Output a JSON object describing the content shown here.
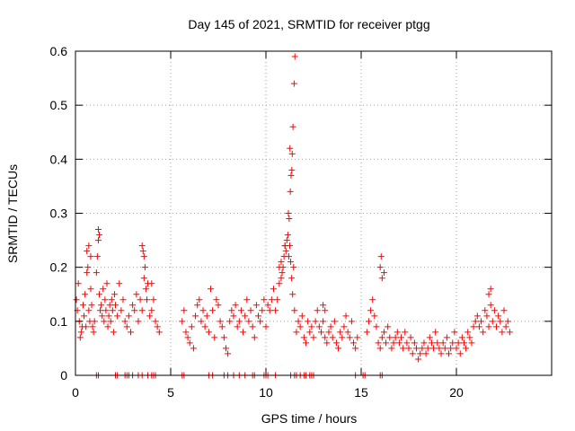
{
  "chart_data": {
    "type": "scatter",
    "title": "Day 145 of 2021, SRMTID for receiver ptgg",
    "xlabel": "GPS time / hours",
    "ylabel": "SRMTID / TECUs",
    "xlim": [
      0,
      25
    ],
    "ylim": [
      0,
      0.6
    ],
    "x_ticks": [
      0,
      5,
      10,
      15,
      20
    ],
    "x_tick_labels": [
      "0",
      "5",
      "10",
      "15",
      "20"
    ],
    "y_ticks": [
      0,
      0.1,
      0.2,
      0.3,
      0.4,
      0.5,
      0.6
    ],
    "y_tick_labels": [
      "0",
      "0.1",
      "0.2",
      "0.3",
      "0.4",
      "0.5",
      "0.6"
    ],
    "grid": true,
    "marker": "+",
    "series": [
      {
        "name": "SRMTID",
        "color": "#ff0000",
        "x": [
          0.05,
          0.1,
          0.15,
          0.2,
          0.25,
          0.3,
          0.35,
          0.4,
          0.45,
          0.5,
          0.55,
          0.6,
          0.65,
          0.7,
          0.75,
          0.8,
          0.85,
          0.9,
          0.95,
          1.0,
          1.1,
          1.15,
          1.2,
          1.25,
          1.3,
          1.35,
          1.4,
          1.45,
          1.5,
          1.55,
          1.6,
          1.65,
          1.7,
          1.75,
          1.8,
          1.85,
          1.9,
          1.95,
          2.0,
          2.05,
          2.1,
          2.2,
          2.3,
          2.4,
          2.5,
          2.6,
          2.7,
          2.8,
          2.9,
          3.0,
          3.1,
          3.2,
          3.3,
          3.4,
          3.5,
          3.6,
          3.65,
          3.7,
          3.75,
          3.8,
          3.9,
          4.0,
          4.1,
          4.2,
          4.3,
          4.4,
          5.6,
          5.7,
          5.8,
          5.9,
          6.0,
          6.1,
          6.2,
          6.3,
          6.4,
          6.5,
          6.6,
          6.7,
          6.8,
          6.9,
          7.0,
          7.1,
          7.2,
          7.3,
          7.4,
          7.5,
          7.6,
          7.7,
          7.8,
          7.9,
          8.0,
          8.1,
          8.2,
          8.3,
          8.4,
          8.5,
          8.6,
          8.7,
          8.8,
          8.9,
          9.0,
          9.1,
          9.2,
          9.3,
          9.4,
          9.5,
          9.6,
          9.7,
          9.8,
          9.9,
          10.0,
          10.1,
          10.2,
          10.3,
          10.4,
          10.5,
          10.6,
          10.7,
          10.8,
          10.85,
          10.9,
          10.95,
          11.0,
          11.05,
          11.1,
          11.15,
          11.2,
          11.25,
          11.3,
          11.35,
          11.4,
          11.45,
          11.5,
          11.6,
          11.7,
          11.8,
          11.9,
          12.0,
          12.1,
          12.2,
          12.3,
          12.4,
          12.5,
          12.6,
          12.7,
          12.8,
          12.9,
          13.0,
          13.1,
          13.2,
          13.3,
          13.4,
          13.5,
          13.6,
          13.7,
          13.8,
          13.9,
          14.0,
          14.1,
          14.2,
          14.3,
          14.4,
          14.5,
          14.6,
          14.7,
          14.8,
          15.3,
          15.4,
          15.5,
          15.6,
          15.7,
          15.8,
          15.9,
          16.0,
          16.1,
          16.2,
          16.3,
          16.4,
          16.5,
          16.6,
          16.7,
          16.8,
          16.9,
          17.0,
          17.1,
          17.2,
          17.3,
          17.4,
          17.5,
          17.6,
          17.7,
          17.8,
          17.9,
          18.0,
          18.1,
          18.2,
          18.3,
          18.4,
          18.5,
          18.6,
          18.7,
          18.8,
          18.9,
          19.0,
          19.1,
          19.2,
          19.3,
          19.4,
          19.5,
          19.6,
          19.7,
          19.8,
          19.9,
          20.0,
          20.1,
          20.2,
          20.3,
          20.4,
          20.5,
          20.6,
          20.7,
          20.8,
          20.9,
          21.0,
          21.1,
          21.2,
          21.3,
          21.4,
          21.5,
          21.6,
          21.7,
          21.8,
          21.9,
          22.0,
          22.1,
          22.2,
          22.3,
          22.4,
          22.5,
          22.6,
          22.7,
          22.8,
          11.22,
          11.28,
          11.32,
          11.36,
          11.42,
          11.48,
          11.52,
          11.38,
          11.26,
          11.18,
          0.6,
          0.7,
          0.8,
          1.2,
          1.25,
          3.5,
          3.55,
          3.6,
          4.0,
          16.0,
          16.05,
          16.1,
          16.2,
          13.0,
          13.1,
          21.7,
          21.8,
          10.7,
          10.8,
          11.0
        ],
        "y": [
          0.14,
          0.12,
          0.17,
          0.1,
          0.07,
          0.08,
          0.09,
          0.13,
          0.11,
          0.15,
          0.09,
          0.19,
          0.2,
          0.12,
          0.1,
          0.16,
          0.13,
          0.09,
          0.08,
          0.1,
          0.19,
          0.22,
          0.25,
          0.15,
          0.12,
          0.13,
          0.11,
          0.16,
          0.1,
          0.14,
          0.12,
          0.17,
          0.09,
          0.11,
          0.13,
          0.1,
          0.14,
          0.12,
          0.08,
          0.15,
          0.13,
          0.11,
          0.17,
          0.12,
          0.14,
          0.1,
          0.09,
          0.11,
          0.08,
          0.13,
          0.12,
          0.15,
          0.1,
          0.14,
          0.12,
          0.18,
          0.2,
          0.16,
          0.14,
          0.17,
          0.11,
          0.12,
          0.14,
          0.1,
          0.09,
          0.08,
          0.1,
          0.12,
          0.08,
          0.07,
          0.06,
          0.09,
          0.05,
          0.11,
          0.13,
          0.14,
          0.1,
          0.12,
          0.09,
          0.11,
          0.08,
          0.16,
          0.12,
          0.07,
          0.14,
          0.13,
          0.1,
          0.09,
          0.07,
          0.05,
          0.04,
          0.1,
          0.12,
          0.11,
          0.13,
          0.09,
          0.1,
          0.12,
          0.08,
          0.11,
          0.14,
          0.1,
          0.12,
          0.09,
          0.07,
          0.13,
          0.11,
          0.1,
          0.12,
          0.14,
          0.09,
          0.13,
          0.12,
          0.14,
          0.16,
          0.12,
          0.14,
          0.17,
          0.18,
          0.19,
          0.2,
          0.22,
          0.24,
          0.23,
          0.25,
          0.26,
          0.22,
          0.24,
          0.21,
          0.18,
          0.15,
          0.2,
          0.12,
          0.08,
          0.1,
          0.09,
          0.11,
          0.07,
          0.06,
          0.1,
          0.08,
          0.09,
          0.07,
          0.1,
          0.12,
          0.09,
          0.08,
          0.1,
          0.07,
          0.06,
          0.08,
          0.09,
          0.07,
          0.1,
          0.06,
          0.05,
          0.08,
          0.07,
          0.09,
          0.11,
          0.08,
          0.07,
          0.1,
          0.06,
          0.05,
          0.07,
          0.08,
          0.1,
          0.12,
          0.14,
          0.11,
          0.09,
          0.06,
          0.05,
          0.07,
          0.08,
          0.06,
          0.09,
          0.07,
          0.05,
          0.06,
          0.07,
          0.08,
          0.06,
          0.07,
          0.05,
          0.08,
          0.06,
          0.05,
          0.07,
          0.04,
          0.06,
          0.05,
          0.03,
          0.04,
          0.05,
          0.06,
          0.04,
          0.05,
          0.07,
          0.06,
          0.05,
          0.08,
          0.06,
          0.05,
          0.04,
          0.06,
          0.05,
          0.07,
          0.04,
          0.05,
          0.06,
          0.08,
          0.05,
          0.06,
          0.04,
          0.07,
          0.06,
          0.05,
          0.08,
          0.07,
          0.06,
          0.09,
          0.1,
          0.11,
          0.09,
          0.1,
          0.08,
          0.12,
          0.11,
          0.09,
          0.13,
          0.1,
          0.12,
          0.09,
          0.11,
          0.1,
          0.08,
          0.12,
          0.09,
          0.1,
          0.08,
          0.29,
          0.34,
          0.37,
          0.38,
          0.46,
          0.54,
          0.59,
          0.41,
          0.42,
          0.3,
          0.23,
          0.24,
          0.22,
          0.27,
          0.26,
          0.24,
          0.23,
          0.22,
          0.17,
          0.2,
          0.22,
          0.18,
          0.19,
          0.13,
          0.12,
          0.15,
          0.16,
          0.2,
          0.21,
          0.24
        ],
        "zero_markers_x": [
          1.1,
          1.2,
          2.1,
          2.2,
          2.6,
          2.7,
          2.8,
          3.0,
          3.3,
          3.5,
          3.8,
          4.0,
          4.1,
          4.2,
          5.6,
          5.7,
          7.0,
          7.2,
          7.8,
          8.0,
          8.3,
          8.6,
          8.9,
          9.3,
          9.4,
          9.9,
          10.0,
          10.1,
          10.5,
          11.3,
          11.5,
          11.6,
          11.8,
          12.0,
          12.1,
          12.3,
          12.4,
          12.5,
          14.7,
          15.1,
          15.2,
          16.0,
          16.1
        ]
      }
    ]
  }
}
